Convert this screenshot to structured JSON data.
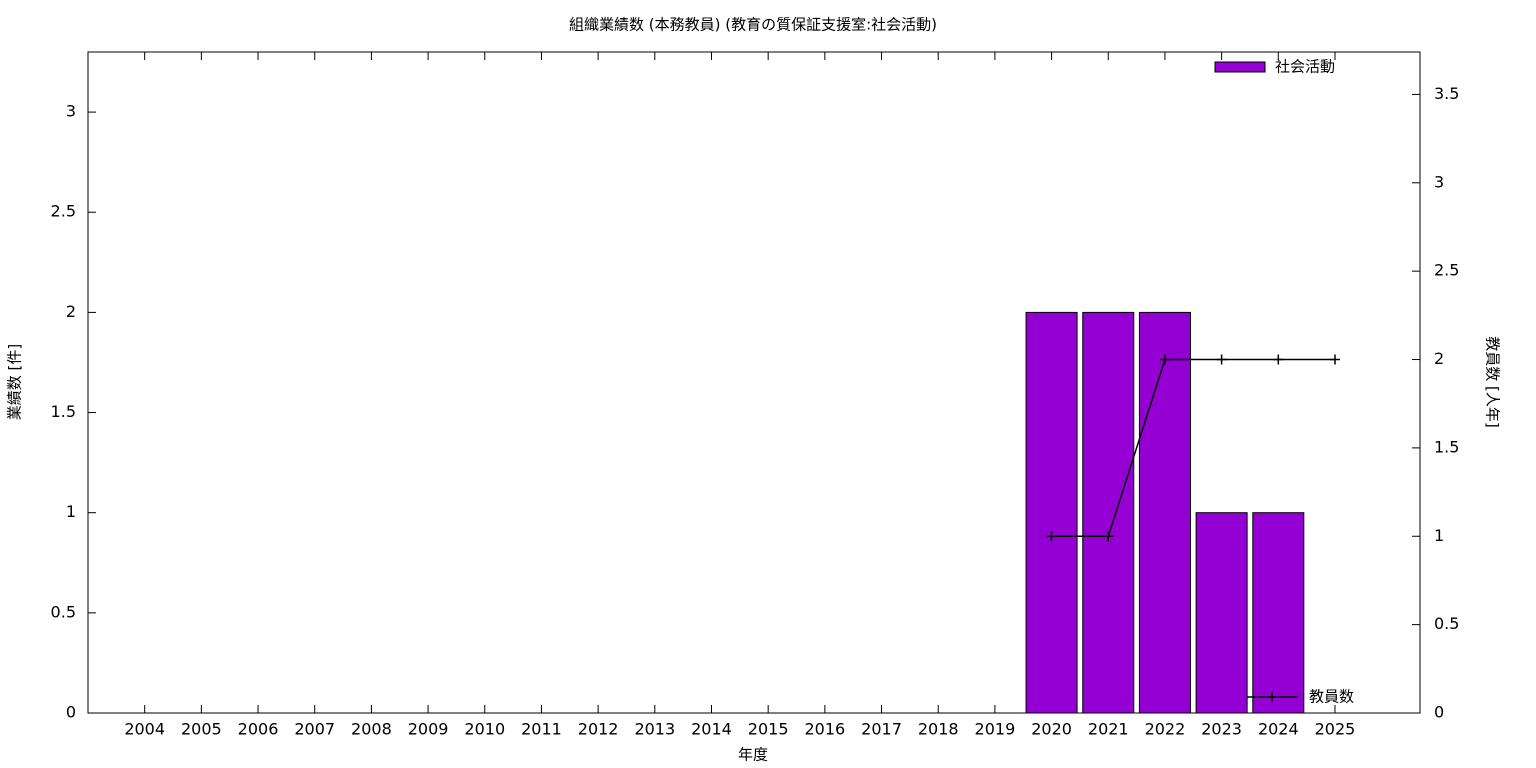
{
  "chart_data": {
    "type": "bar",
    "title": "組織業績数 (本務教員) (教育の質保証支援室:社会活動)",
    "xlabel": "年度",
    "ylabel": "業績数 [件]",
    "y2label": "教員数 [人年]",
    "categories": [
      "2004",
      "2005",
      "2006",
      "2007",
      "2008",
      "2009",
      "2010",
      "2011",
      "2012",
      "2013",
      "2014",
      "2015",
      "2016",
      "2017",
      "2018",
      "2019",
      "2020",
      "2021",
      "2022",
      "2023",
      "2024",
      "2025"
    ],
    "series": [
      {
        "name": "社会活動",
        "type": "bar",
        "color": "#9400d3",
        "legend": "top-right",
        "values": [
          0,
          0,
          0,
          0,
          0,
          0,
          0,
          0,
          0,
          0,
          0,
          0,
          0,
          0,
          0,
          0,
          2,
          2,
          2,
          1,
          1,
          0
        ]
      },
      {
        "name": "教員数",
        "type": "line",
        "color": "#000000",
        "axis": "y2",
        "legend": "bottom-right",
        "values": [
          null,
          null,
          null,
          null,
          null,
          null,
          null,
          null,
          null,
          null,
          null,
          null,
          null,
          null,
          null,
          null,
          1,
          1,
          2,
          2,
          2,
          2
        ]
      }
    ],
    "ylim": [
      0,
      3.3
    ],
    "yticks": [
      0,
      0.5,
      1,
      1.5,
      2,
      2.5,
      3
    ],
    "y2lim": [
      0,
      3.74
    ],
    "y2ticks": [
      0,
      0.5,
      1,
      1.5,
      2,
      2.5,
      3,
      3.5
    ]
  }
}
